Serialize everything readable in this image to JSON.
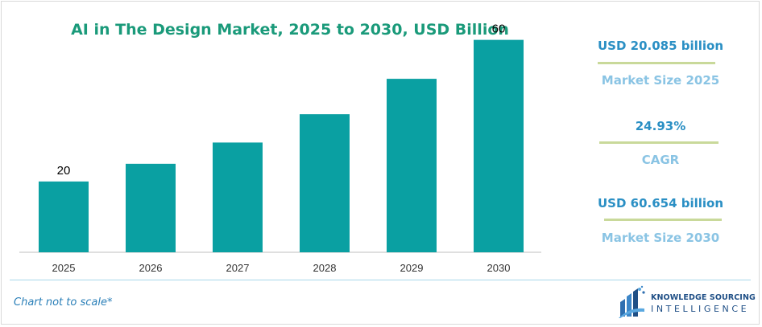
{
  "chart_data": {
    "type": "bar",
    "title": "AI in The Design Market, 2025 to 2030, USD Billion",
    "categories": [
      "2025",
      "2026",
      "2027",
      "2028",
      "2029",
      "2030"
    ],
    "values": [
      20,
      25,
      31,
      39,
      49,
      60
    ],
    "data_labels": [
      "20",
      "",
      "",
      "",
      "",
      "60"
    ],
    "ylim": [
      0,
      64
    ],
    "grid": false,
    "bar_color": "#0aa0a2"
  },
  "stats": [
    {
      "value": "USD 20.085 billion",
      "caption": "Market Size 2025"
    },
    {
      "value": "24.93%",
      "caption": "CAGR"
    },
    {
      "value": "USD 60.654 billion",
      "caption": "Market Size 2030"
    }
  ],
  "footer": {
    "note": "Chart not to scale*",
    "logo_line1": "KNOWLEDGE SOURCING",
    "logo_line2": "INTELLIGENCE"
  },
  "colors": {
    "title": "#1a9a7a",
    "stat_value": "#2a8fc4",
    "stat_caption": "#8ac4e4",
    "stat_divider": "#c9d99a",
    "logo": "#1f4f86"
  }
}
